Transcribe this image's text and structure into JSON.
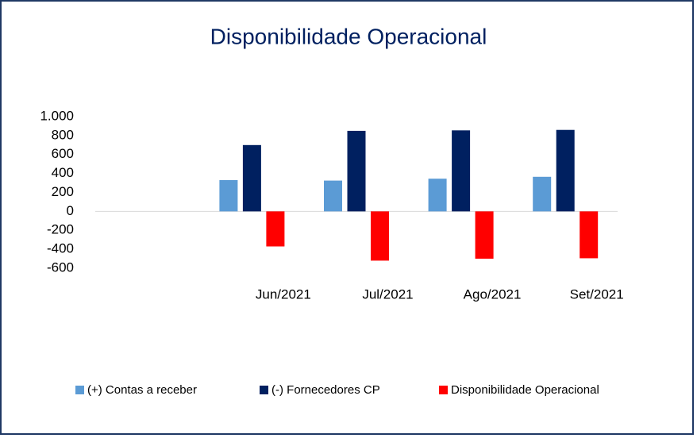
{
  "chart_data": {
    "type": "bar",
    "title": "Disponibilidade Operacional",
    "categories": [
      null,
      "Jun/2021",
      "Jul/2021",
      "Ago/2021",
      "Set/2021"
    ],
    "series": [
      {
        "name": "(+) Contas a receber",
        "color": "#5b9bd5",
        "values": [
          null,
          330,
          325,
          345,
          365
        ]
      },
      {
        "name": "(-) Fornecedores CP",
        "color": "#002060",
        "values": [
          null,
          700,
          850,
          855,
          860
        ]
      },
      {
        "name": "Disponibilidade Operacional",
        "color": "#ff0000",
        "values": [
          null,
          -370,
          -520,
          -500,
          -495
        ]
      }
    ],
    "ylim": [
      -600,
      1000
    ],
    "yticks": [
      -600,
      -400,
      -200,
      0,
      200,
      400,
      600,
      800,
      {
        "value": 1000,
        "label": "1.000"
      }
    ],
    "grid": false,
    "legend": "bottom"
  }
}
